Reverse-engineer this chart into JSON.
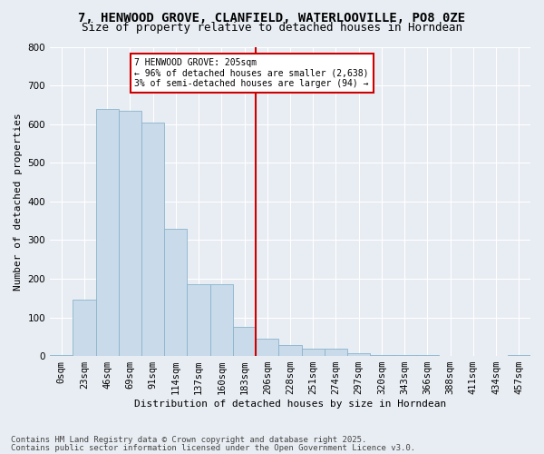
{
  "title1": "7, HENWOOD GROVE, CLANFIELD, WATERLOOVILLE, PO8 0ZE",
  "title2": "Size of property relative to detached houses in Horndean",
  "xlabel": "Distribution of detached houses by size in Horndean",
  "ylabel": "Number of detached properties",
  "footnote1": "Contains HM Land Registry data © Crown copyright and database right 2025.",
  "footnote2": "Contains public sector information licensed under the Open Government Licence v3.0.",
  "annotation_line1": "7 HENWOOD GROVE: 205sqm",
  "annotation_line2": "← 96% of detached houses are smaller (2,638)",
  "annotation_line3": "3% of semi-detached houses are larger (94) →",
  "bar_color": "#c9daea",
  "bar_edge_color": "#8ab4cc",
  "marker_color": "#cc0000",
  "annotation_box_color": "#cc0000",
  "background_color": "#e8edf3",
  "categories": [
    "0sqm",
    "23sqm",
    "46sqm",
    "69sqm",
    "91sqm",
    "114sqm",
    "137sqm",
    "160sqm",
    "183sqm",
    "206sqm",
    "228sqm",
    "251sqm",
    "274sqm",
    "297sqm",
    "320sqm",
    "343sqm",
    "366sqm",
    "388sqm",
    "411sqm",
    "434sqm",
    "457sqm"
  ],
  "values": [
    2,
    145,
    640,
    635,
    605,
    330,
    185,
    185,
    75,
    45,
    28,
    18,
    18,
    8,
    2,
    2,
    2,
    0,
    0,
    0,
    2
  ],
  "marker_bin_index": 8.5,
  "ylim": [
    0,
    800
  ],
  "yticks": [
    0,
    100,
    200,
    300,
    400,
    500,
    600,
    700,
    800
  ],
  "title_fontsize": 10,
  "subtitle_fontsize": 9,
  "axis_label_fontsize": 8,
  "tick_fontsize": 7.5,
  "footnote_fontsize": 6.5
}
